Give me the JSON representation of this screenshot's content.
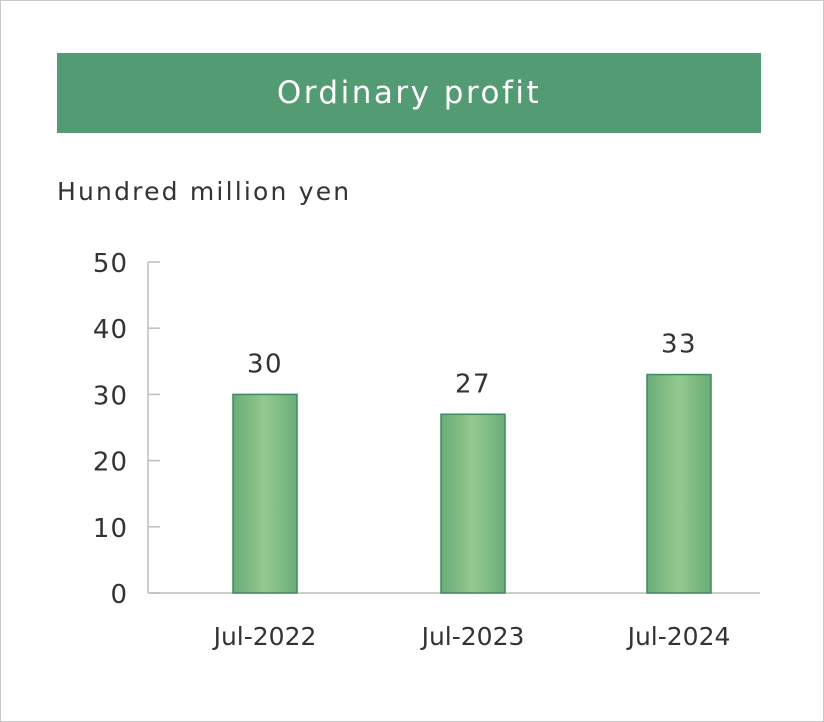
{
  "chart_data": {
    "type": "bar",
    "title": "Ordinary profit",
    "ylabel": "Hundred million yen",
    "xlabel": "",
    "categories": [
      "Jul-2022",
      "Jul-2023",
      "Jul-2024"
    ],
    "values": [
      30,
      27,
      33
    ],
    "data_labels": [
      "30",
      "27",
      "33"
    ],
    "ylim": [
      0,
      50
    ],
    "yticks": [
      0,
      10,
      20,
      30,
      40,
      50
    ],
    "ytick_labels": [
      "0",
      "10",
      "20",
      "30",
      "40",
      "50"
    ],
    "grid": false,
    "legend": "none",
    "colors": {
      "title_bar": "#529b73",
      "bar_fill_edge": "#6aac78",
      "bar_fill_center": "#93c98e",
      "bar_stroke": "#3f8a5f",
      "axis": "#bdbdbd"
    }
  }
}
